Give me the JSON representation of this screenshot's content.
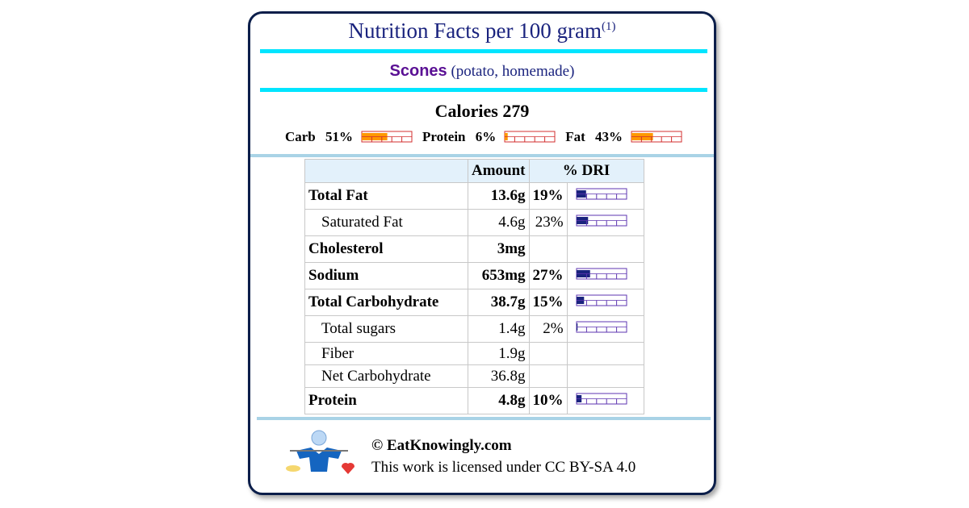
{
  "header": {
    "title": "Nutrition Facts per 100 gram",
    "footnote": "(1)"
  },
  "food": {
    "name": "Scones",
    "description": "(potato, homemade)"
  },
  "calories": {
    "label": "Calories",
    "value": 279
  },
  "macros": [
    {
      "name": "Carb",
      "percent": 51,
      "label": "51%"
    },
    {
      "name": "Protein",
      "percent": 6,
      "label": "6%"
    },
    {
      "name": "Fat",
      "percent": 43,
      "label": "43%"
    }
  ],
  "table": {
    "columns": [
      "Amount",
      "% DRI"
    ],
    "rows": [
      {
        "name": "Total Fat",
        "amount": "13.6g",
        "dri": 19,
        "dri_label": "19%",
        "bold": true
      },
      {
        "name": "Saturated Fat",
        "amount": "4.6g",
        "dri": 23,
        "dri_label": "23%",
        "indent": true
      },
      {
        "name": "Cholesterol",
        "amount": "3mg",
        "bold": true
      },
      {
        "name": "Sodium",
        "amount": "653mg",
        "dri": 27,
        "dri_label": "27%",
        "bold": true
      },
      {
        "name": "Total Carbohydrate",
        "amount": "38.7g",
        "dri": 15,
        "dri_label": "15%",
        "bold": true
      },
      {
        "name": "Total sugars",
        "amount": "1.4g",
        "dri": 2,
        "dri_label": "2%",
        "indent": true
      },
      {
        "name": "Fiber",
        "amount": "1.9g",
        "indent": true
      },
      {
        "name": "Net Carbohydrate",
        "amount": "36.8g",
        "indent": true
      },
      {
        "name": "Protein",
        "amount": "4.8g",
        "dri": 10,
        "dri_label": "10%",
        "bold": true
      }
    ]
  },
  "footer": {
    "site": "© EatKnowingly.com",
    "license": "This work is licensed under CC BY-SA 4.0"
  }
}
